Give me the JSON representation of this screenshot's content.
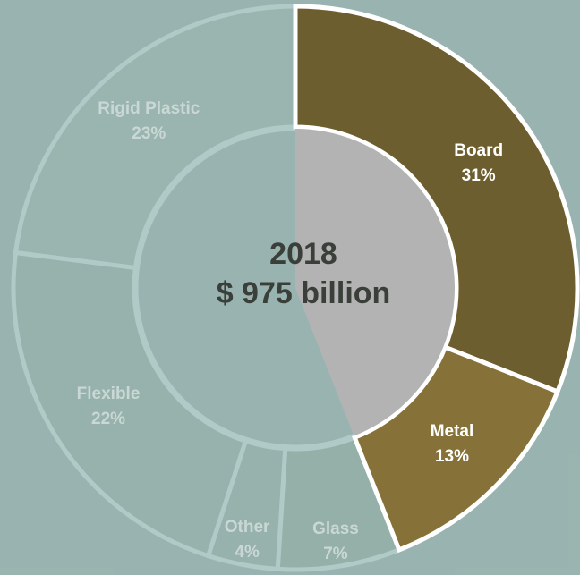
{
  "chart_data": {
    "type": "pie",
    "title": "",
    "center": {
      "year": "2018",
      "total": "$ 975 billion"
    },
    "slices": [
      {
        "label": "Board",
        "percent_label": "31%",
        "value": 31,
        "color": "#6d5e2f",
        "text_color": "#ffffff"
      },
      {
        "label": "Metal",
        "percent_label": "13%",
        "value": 13,
        "color": "#867238",
        "text_color": "#ffffff"
      },
      {
        "label": "Glass",
        "percent_label": "7%",
        "value": 7,
        "color": "#a4a29a",
        "text_color": "#c9d8d4"
      },
      {
        "label": "Other",
        "percent_label": "4%",
        "value": 4,
        "color": "#aaa9a3",
        "text_color": "#c9d8d4"
      },
      {
        "label": "Flexible",
        "percent_label": "22%",
        "value": 22,
        "color": "#acaba6",
        "text_color": "#c9d8d4"
      },
      {
        "label": "Rigid Plastic",
        "percent_label": "23%",
        "value": 23,
        "color": "#b6b6b3",
        "text_color": "#c9d8d4"
      }
    ],
    "inner_hole_color": "#b3b3b3",
    "separator_color": "#ffffff",
    "overlay_color": "#8fb5af"
  }
}
